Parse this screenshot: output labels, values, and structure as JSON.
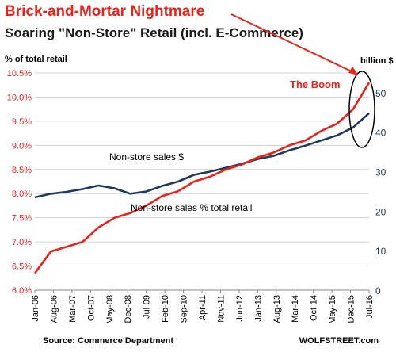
{
  "chart_data": {
    "type": "line",
    "title": "Brick-and-Mortar Nightmare",
    "subtitle": "Soaring \"Non-Store\" Retail (incl. E-Commerce)",
    "left_axis_label": "% of total retail",
    "right_axis_label": "billion $",
    "source": "Source: Commerce Department",
    "brand": "WOLFSTREET.com",
    "annotation": "The Boom",
    "x_start": "2006-01",
    "x_end": "2016-07",
    "x_ticks": [
      "Jan-06",
      "Aug-06",
      "Mar-07",
      "Oct-07",
      "May-08",
      "Dec-08",
      "Jul-09",
      "Feb-10",
      "Sep-10",
      "Apr-11",
      "Nov-11",
      "Jun-12",
      "Jan-13",
      "Aug-13",
      "Mar-14",
      "Oct-14",
      "May-15",
      "Dec-15",
      "Jul-16"
    ],
    "left_ylim": [
      6.0,
      10.5
    ],
    "left_ticks": [
      "6.0%",
      "6.5%",
      "7.0%",
      "7.5%",
      "8.0%",
      "8.5%",
      "9.0%",
      "9.5%",
      "10.0%",
      "10.5%"
    ],
    "right_ylim": [
      0,
      55
    ],
    "right_ticks": [
      "0",
      "10",
      "20",
      "30",
      "40",
      "50"
    ],
    "series": [
      {
        "name": "Non-store sales $",
        "axis": "right",
        "color": "#1f3a5f",
        "x": [
          "2006-01",
          "2006-07",
          "2007-01",
          "2007-07",
          "2008-01",
          "2008-07",
          "2009-01",
          "2009-07",
          "2010-01",
          "2010-07",
          "2011-01",
          "2011-07",
          "2012-01",
          "2012-07",
          "2013-01",
          "2013-07",
          "2014-01",
          "2014-07",
          "2015-01",
          "2015-07",
          "2016-01",
          "2016-07"
        ],
        "values": [
          23.5,
          24.4,
          24.9,
          25.6,
          26.5,
          25.8,
          24.4,
          25.0,
          26.4,
          27.5,
          29.2,
          30.0,
          31.0,
          32.0,
          33.2,
          34.0,
          35.4,
          36.6,
          37.9,
          39.2,
          41.2,
          44.8
        ]
      },
      {
        "name": "Non-store sales % total retail",
        "axis": "left",
        "color": "#e8221c",
        "x": [
          "2006-01",
          "2006-07",
          "2007-01",
          "2007-07",
          "2008-01",
          "2008-07",
          "2009-01",
          "2009-07",
          "2010-01",
          "2010-07",
          "2011-01",
          "2011-07",
          "2012-01",
          "2012-07",
          "2013-01",
          "2013-07",
          "2014-01",
          "2014-07",
          "2015-01",
          "2015-07",
          "2016-01",
          "2016-07"
        ],
        "values": [
          6.35,
          6.8,
          6.9,
          7.0,
          7.3,
          7.5,
          7.6,
          7.75,
          7.95,
          8.05,
          8.25,
          8.35,
          8.5,
          8.6,
          8.75,
          8.85,
          9.0,
          9.1,
          9.3,
          9.45,
          9.75,
          10.3
        ]
      }
    ],
    "series_labels": [
      "Non-store sales $",
      "Non-store sales % total retail"
    ]
  }
}
